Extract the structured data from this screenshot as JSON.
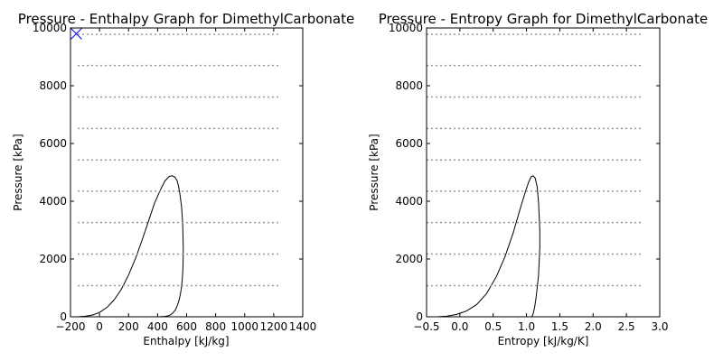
{
  "chart_data": [
    {
      "type": "line",
      "title": "Pressure - Enthalpy Graph for DimethylCarbonate",
      "xlabel": "Enthalpy [kJ/kg]",
      "ylabel": "Pressure [kPa]",
      "xlim": [
        -200,
        1400
      ],
      "ylim": [
        0,
        10000
      ],
      "xticks": [
        -200,
        0,
        200,
        400,
        600,
        800,
        1000,
        1200,
        1400
      ],
      "xtick_labels": [
        "−200",
        "0",
        "200",
        "400",
        "600",
        "800",
        "1000",
        "1200",
        "1400"
      ],
      "yticks": [
        0,
        2000,
        4000,
        6000,
        8000,
        10000
      ],
      "ytick_labels": [
        "0",
        "2000",
        "4000",
        "6000",
        "8000",
        "10000"
      ],
      "grid": false,
      "series": [
        {
          "kind": "saturation_dome",
          "color": "#000000",
          "x": [
            -150,
            -100,
            -50,
            0,
            50,
            100,
            150,
            200,
            250,
            300,
            340,
            380,
            420,
            450,
            480,
            500,
            520,
            535,
            545,
            555,
            565,
            572,
            575,
            577,
            576,
            574,
            570,
            565,
            558,
            550,
            540,
            530,
            520,
            505,
            490,
            470,
            450,
            430,
            410,
            400
          ],
          "y": [
            0,
            20,
            60,
            150,
            320,
            580,
            950,
            1450,
            2050,
            2750,
            3350,
            3950,
            4400,
            4700,
            4860,
            4880,
            4830,
            4700,
            4500,
            4200,
            3800,
            3300,
            2800,
            2300,
            1900,
            1600,
            1300,
            1050,
            820,
            620,
            450,
            320,
            220,
            130,
            70,
            30,
            12,
            5,
            1,
            0
          ]
        },
        {
          "kind": "isotherms",
          "color": "#999999",
          "style": "dotted",
          "x_range": [
            -150,
            1250
          ],
          "levels": [
            1080,
            2170,
            3260,
            4350,
            5430,
            6520,
            7610,
            8700,
            9780
          ]
        },
        {
          "kind": "marker",
          "marker": "x",
          "color": "#0000ff",
          "x": [
            -160
          ],
          "y": [
            9800
          ]
        }
      ]
    },
    {
      "type": "line",
      "title": "Pressure - Entropy Graph for DimethylCarbonate",
      "xlabel": "Entropy [kJ/kg/K]",
      "ylabel": "Pressure [kPa]",
      "xlim": [
        -0.5,
        3.0
      ],
      "ylim": [
        0,
        10000
      ],
      "xticks": [
        -0.5,
        0.0,
        0.5,
        1.0,
        1.5,
        2.0,
        2.5,
        3.0
      ],
      "xtick_labels": [
        "−0.5",
        "0.0",
        "0.5",
        "1.0",
        "1.5",
        "2.0",
        "2.5",
        "3.0"
      ],
      "yticks": [
        0,
        2000,
        4000,
        6000,
        8000,
        10000
      ],
      "ytick_labels": [
        "0",
        "2000",
        "4000",
        "6000",
        "8000",
        "10000"
      ],
      "grid": false,
      "series": [
        {
          "kind": "saturation_dome",
          "color": "#000000",
          "x": [
            -0.35,
            -0.2,
            -0.05,
            0.1,
            0.25,
            0.4,
            0.55,
            0.68,
            0.8,
            0.9,
            0.98,
            1.03,
            1.07,
            1.1,
            1.13,
            1.16,
            1.18,
            1.19,
            1.2,
            1.2,
            1.19,
            1.18,
            1.16,
            1.14,
            1.12,
            1.1,
            1.08
          ],
          "y": [
            0,
            20,
            80,
            200,
            420,
            800,
            1400,
            2100,
            2900,
            3700,
            4300,
            4650,
            4850,
            4880,
            4800,
            4500,
            4000,
            3500,
            3000,
            2400,
            1900,
            1400,
            1000,
            600,
            300,
            100,
            0
          ]
        },
        {
          "kind": "isotherms",
          "color": "#999999",
          "style": "dotted",
          "x_range": [
            -0.5,
            2.75
          ],
          "levels": [
            1080,
            2170,
            3260,
            4350,
            5430,
            6520,
            7610,
            8700,
            9780
          ]
        }
      ]
    }
  ]
}
